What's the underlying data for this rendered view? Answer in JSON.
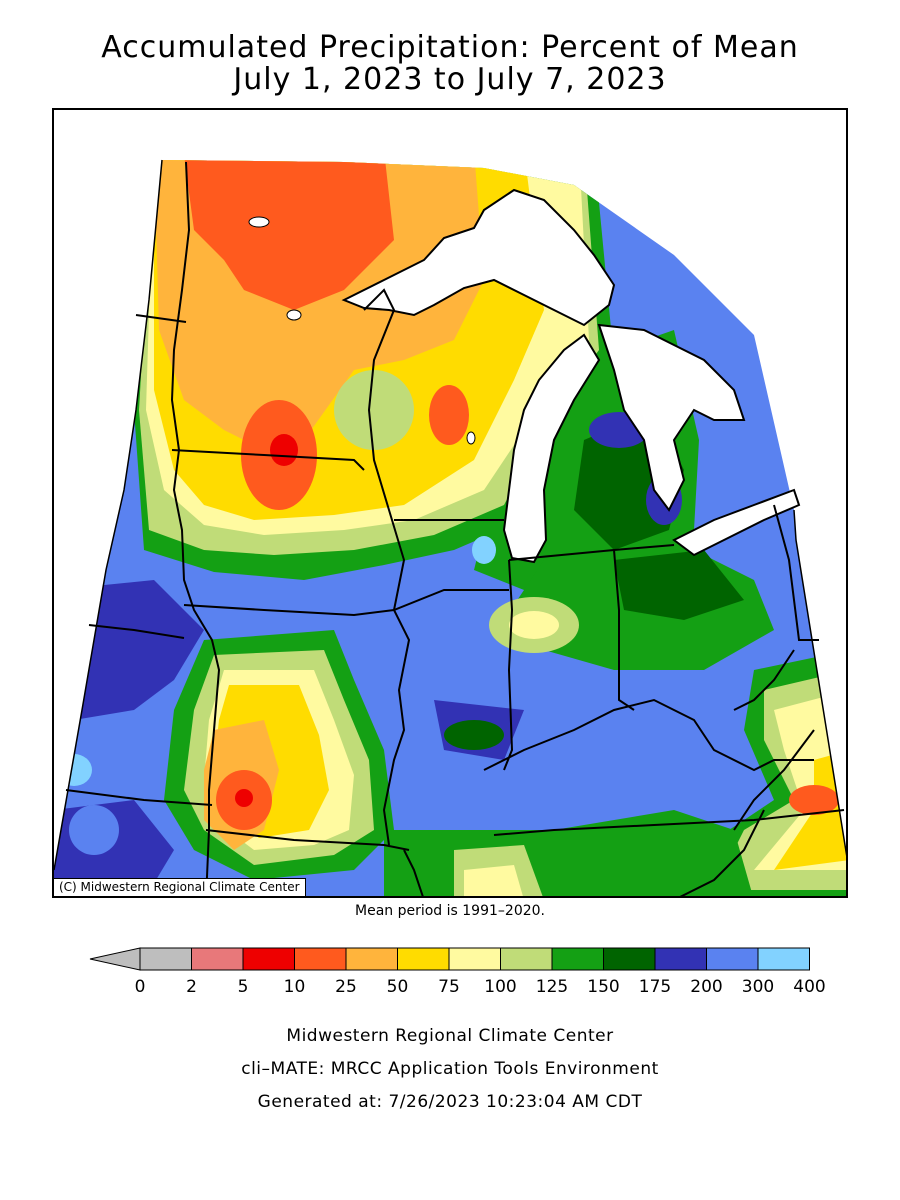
{
  "title": {
    "line1": "Accumulated Precipitation: Percent of Mean",
    "line2": "July 1, 2023 to July 7, 2023"
  },
  "map": {
    "copyright": "(C) Midwestern Regional Climate Center",
    "mean_period": "Mean period is 1991–2020."
  },
  "legend": {
    "labels": [
      "0",
      "2",
      "5",
      "10",
      "25",
      "50",
      "75",
      "100",
      "125",
      "150",
      "175",
      "200",
      "300",
      "400"
    ],
    "colors": [
      "#bebebe",
      "#e8787a",
      "#ee0000",
      "#ff5a1e",
      "#ffb43c",
      "#ffdc00",
      "#fffaa0",
      "#c0dc78",
      "#14a014",
      "#006400",
      "#3232b4",
      "#5a82f0",
      "#82d2ff"
    ],
    "below_color": "#bebebe"
  },
  "footer": {
    "line1": "Midwestern Regional Climate Center",
    "line2": "cli–MATE: MRCC Application Tools Environment",
    "line3": "Generated at: 7/26/2023 10:23:04 AM CDT"
  }
}
